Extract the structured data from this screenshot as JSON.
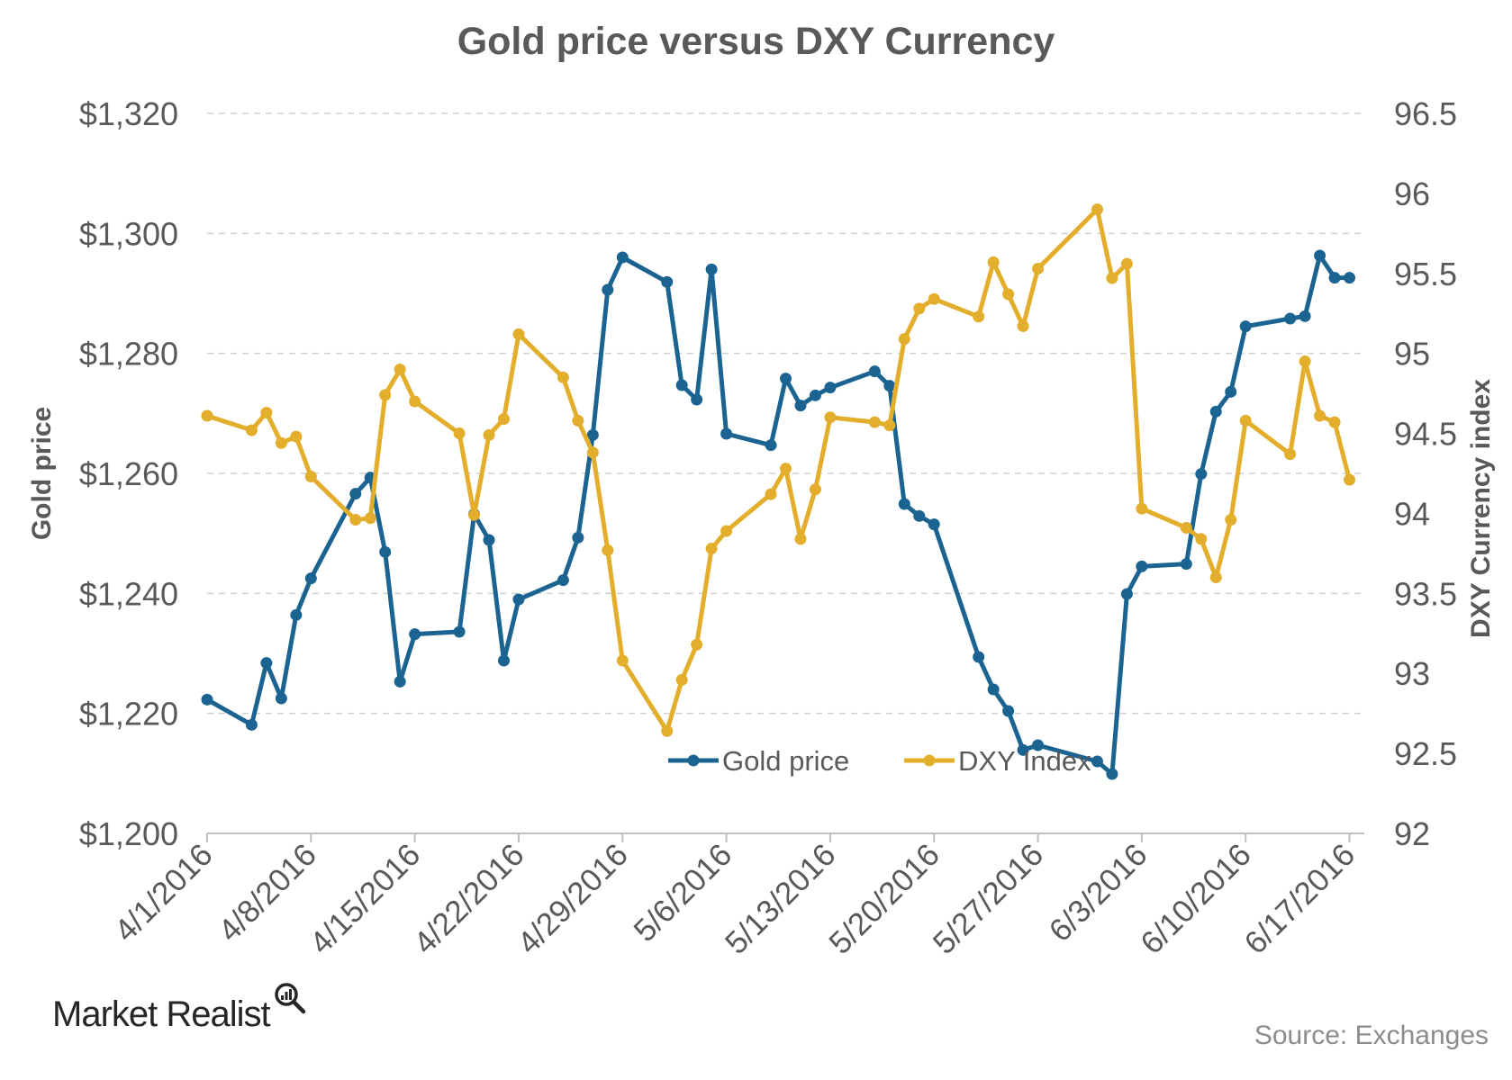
{
  "footer": {
    "brand": "Market Realist",
    "source": "Source: Exchanges"
  },
  "colors": {
    "gold": "#1b6492",
    "dxy": "#e2ae2b",
    "grid": "#d0d0d0",
    "axis_text": "#595959"
  },
  "chart_data": {
    "type": "line",
    "title": "Gold price versus DXY Currency",
    "ylabel": "Gold price",
    "y2label": "DXY Currency index",
    "ylim": [
      1200,
      1320
    ],
    "y2lim": [
      92,
      96.5
    ],
    "xlim": [
      "4/1/2016",
      "6/18/2016"
    ],
    "yticks": [
      "$1,200",
      "$1,220",
      "$1,240",
      "$1,260",
      "$1,280",
      "$1,300",
      "$1,320"
    ],
    "y2ticks": [
      "92",
      "92.5",
      "93",
      "93.5",
      "94",
      "94.5",
      "95",
      "95.5",
      "96",
      "96.5"
    ],
    "xticks": [
      "4/1/2016",
      "4/8/2016",
      "4/15/2016",
      "4/22/2016",
      "4/29/2016",
      "5/6/2016",
      "5/13/2016",
      "5/20/2016",
      "5/27/2016",
      "6/3/2016",
      "6/10/2016",
      "6/17/2016"
    ],
    "grid": true,
    "legend": "bottom-center",
    "dates": [
      "4/1/2016",
      "4/4/2016",
      "4/5/2016",
      "4/6/2016",
      "4/7/2016",
      "4/8/2016",
      "4/11/2016",
      "4/12/2016",
      "4/13/2016",
      "4/14/2016",
      "4/15/2016",
      "4/18/2016",
      "4/19/2016",
      "4/20/2016",
      "4/21/2016",
      "4/22/2016",
      "4/25/2016",
      "4/26/2016",
      "4/27/2016",
      "4/28/2016",
      "4/29/2016",
      "5/2/2016",
      "5/3/2016",
      "5/4/2016",
      "5/5/2016",
      "5/6/2016",
      "5/9/2016",
      "5/10/2016",
      "5/11/2016",
      "5/12/2016",
      "5/13/2016",
      "5/16/2016",
      "5/17/2016",
      "5/18/2016",
      "5/19/2016",
      "5/20/2016",
      "5/23/2016",
      "5/24/2016",
      "5/25/2016",
      "5/26/2016",
      "5/27/2016",
      "5/31/2016",
      "6/1/2016",
      "6/2/2016",
      "6/3/2016",
      "6/6/2016",
      "6/7/2016",
      "6/8/2016",
      "6/9/2016",
      "6/10/2016",
      "6/13/2016",
      "6/14/2016",
      "6/15/2016",
      "6/16/2016",
      "6/17/2016"
    ],
    "series": [
      {
        "name": "Gold price",
        "axis": "left",
        "values": [
          1222.3,
          1218.1,
          1228.4,
          1222.5,
          1236.4,
          1242.5,
          1256.6,
          1259.3,
          1246.9,
          1225.3,
          1233.2,
          1233.6,
          1253.2,
          1248.9,
          1228.8,
          1239.0,
          1242.2,
          1249.3,
          1266.4,
          1290.6,
          1296.0,
          1291.9,
          1274.7,
          1272.3,
          1294.0,
          1266.6,
          1264.7,
          1275.8,
          1271.3,
          1273.0,
          1274.3,
          1277.0,
          1274.6,
          1254.9,
          1252.9,
          1251.5,
          1229.4,
          1224.0,
          1220.4,
          1213.9,
          1214.7,
          1212.0,
          1209.9,
          1239.9,
          1244.5,
          1244.9,
          1259.9,
          1270.3,
          1273.6,
          1284.5,
          1285.8,
          1286.2,
          1296.3,
          1292.6,
          1292.6
        ],
        "dates_override": null
      },
      {
        "name": "DXY Index",
        "axis": "right",
        "values": [
          94.61,
          94.52,
          94.63,
          94.44,
          94.48,
          94.23,
          93.96,
          93.97,
          94.74,
          94.9,
          94.7,
          94.5,
          93.99,
          94.49,
          94.59,
          95.12,
          94.85,
          94.58,
          94.38,
          93.77,
          93.08,
          92.64,
          92.96,
          93.18,
          93.78,
          93.89,
          94.12,
          94.28,
          93.84,
          94.15,
          94.6,
          94.57,
          94.55,
          95.09,
          95.28,
          95.34,
          95.23,
          95.57,
          95.37,
          95.17,
          95.53,
          95.9,
          95.47,
          95.56,
          94.03,
          93.91,
          93.84,
          93.6,
          93.96,
          94.58,
          94.37,
          94.95,
          94.61,
          94.57,
          94.21
        ]
      }
    ]
  }
}
